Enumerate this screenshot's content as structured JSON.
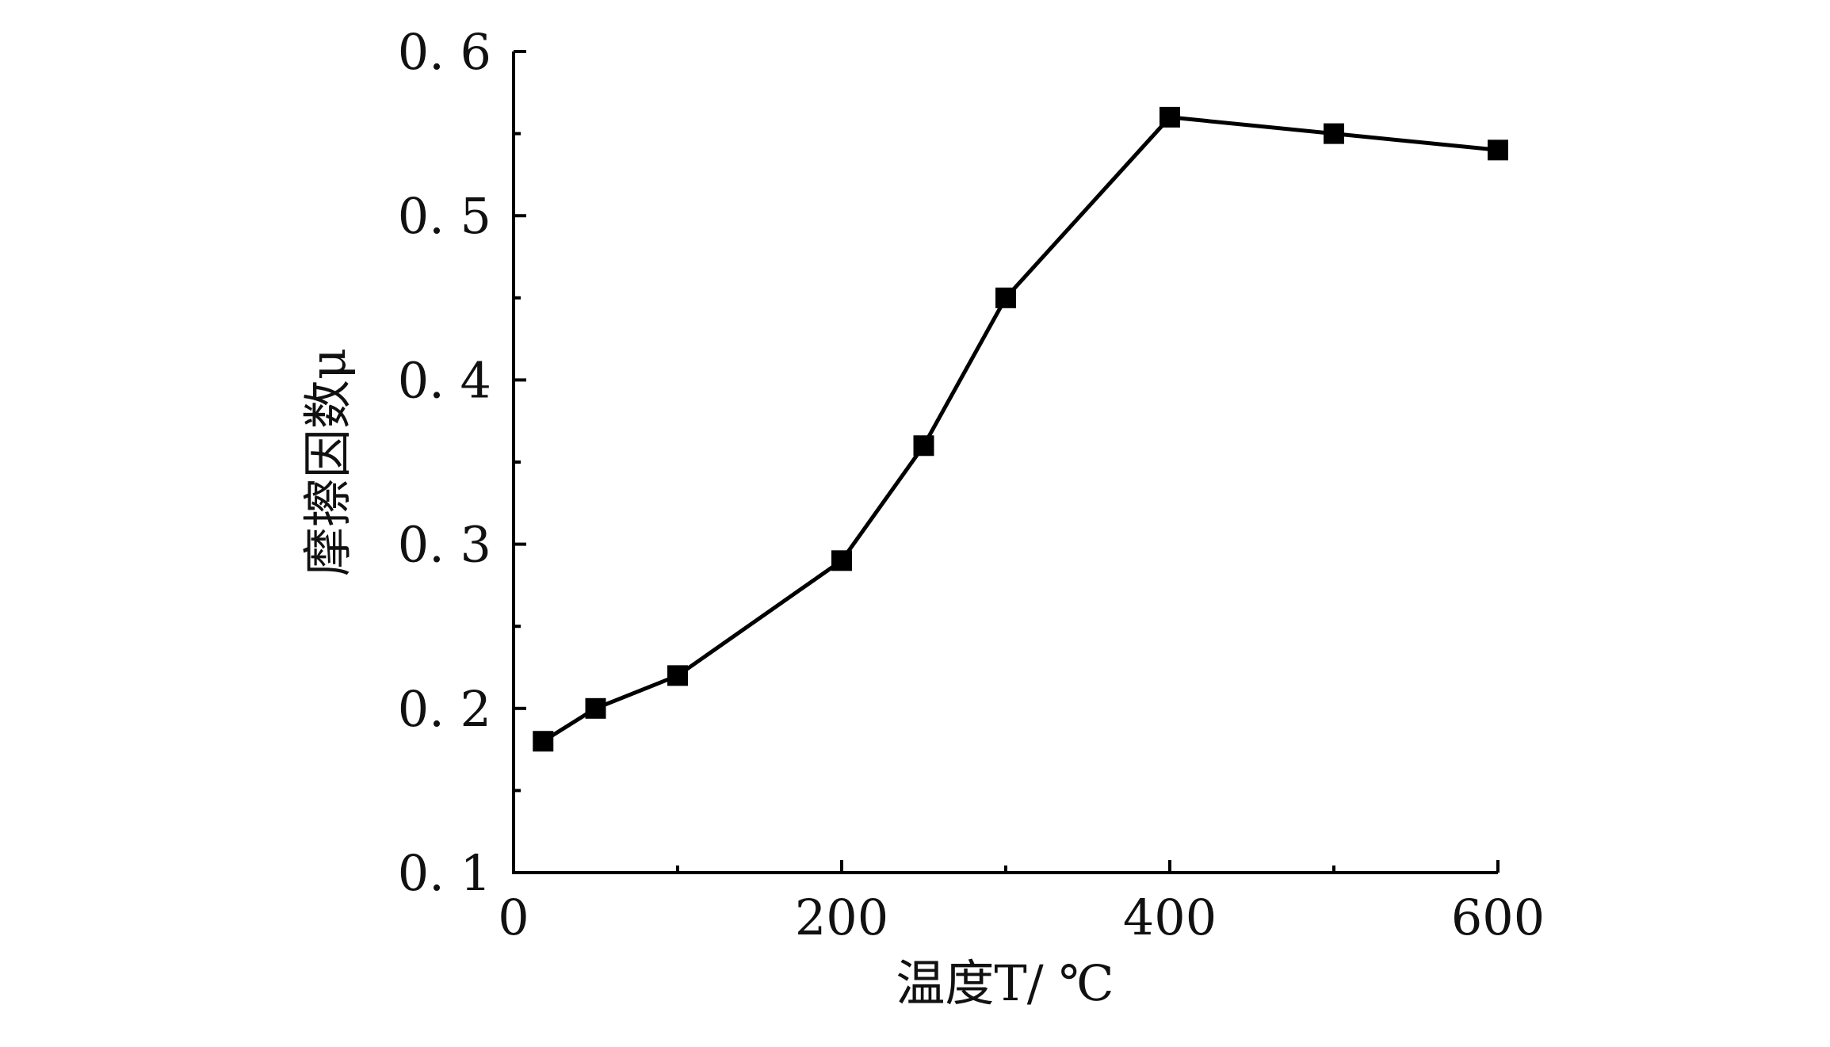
{
  "chart_data": {
    "type": "line",
    "title": "",
    "xlabel": "温度T/ ℃",
    "ylabel": "摩擦因数μ",
    "xlim": [
      0,
      600
    ],
    "ylim": [
      0.1,
      0.6
    ],
    "x_ticks": [
      0,
      200,
      400,
      600
    ],
    "x_tick_labels": [
      "0",
      "200",
      "400",
      "600"
    ],
    "y_ticks": [
      0.1,
      0.2,
      0.3,
      0.4,
      0.5,
      0.6
    ],
    "y_tick_labels": [
      "0. 1",
      "0. 2",
      "0. 3",
      "0. 4",
      "0. 5",
      "0. 6"
    ],
    "grid": false,
    "marker": "square",
    "color": "#000000",
    "series": [
      {
        "x": [
          18,
          50,
          100,
          200,
          250,
          300,
          400,
          500,
          600
        ],
        "values": [
          0.18,
          0.2,
          0.22,
          0.29,
          0.36,
          0.45,
          0.56,
          0.55,
          0.54
        ]
      }
    ]
  }
}
